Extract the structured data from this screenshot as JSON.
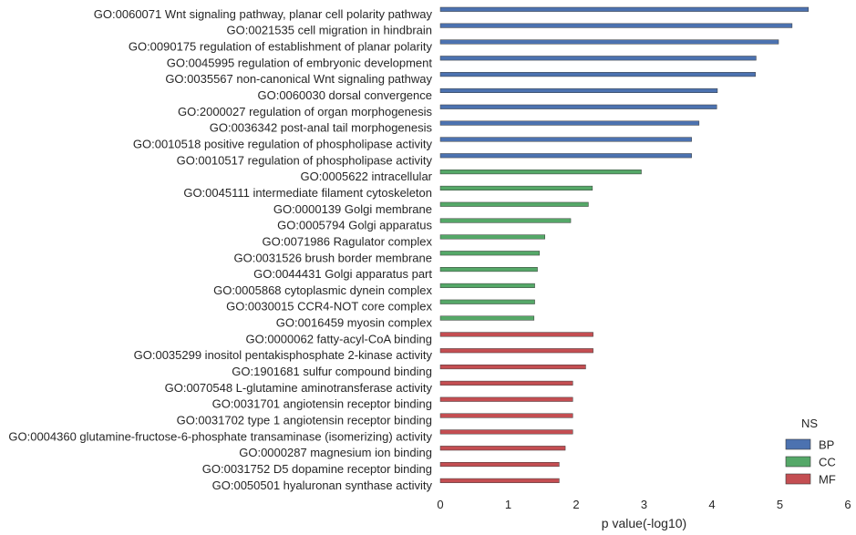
{
  "chart_data": {
    "type": "bar",
    "orientation": "horizontal",
    "xlabel": "p value(-log10)",
    "xlim": [
      0,
      6
    ],
    "xticks": [
      0,
      1,
      2,
      3,
      4,
      5,
      6
    ],
    "grid": false,
    "legend": {
      "title": "NS",
      "placement": "bottom-right",
      "entries": [
        {
          "label": "BP",
          "color": "#4c72b0"
        },
        {
          "label": "CC",
          "color": "#55a868"
        },
        {
          "label": "MF",
          "color": "#c44e52"
        }
      ]
    },
    "categories": [
      "GO:0060071 Wnt signaling pathway, planar cell polarity pathway",
      "GO:0021535 cell migration in hindbrain",
      "GO:0090175 regulation of establishment of planar polarity",
      "GO:0045995 regulation of embryonic development",
      "GO:0035567 non-canonical Wnt signaling pathway",
      "GO:0060030 dorsal convergence",
      "GO:2000027 regulation of organ morphogenesis",
      "GO:0036342 post-anal tail morphogenesis",
      "GO:0010518 positive regulation of phospholipase activity",
      "GO:0010517 regulation of phospholipase activity",
      "GO:0005622 intracellular",
      "GO:0045111 intermediate filament cytoskeleton",
      "GO:0000139 Golgi membrane",
      "GO:0005794 Golgi apparatus",
      "GO:0071986 Ragulator complex",
      "GO:0031526 brush border membrane",
      "GO:0044431 Golgi apparatus part",
      "GO:0005868 cytoplasmic dynein complex",
      "GO:0030015 CCR4-NOT core complex",
      "GO:0016459 myosin complex",
      "GO:0000062 fatty-acyl-CoA binding",
      "GO:0035299 inositol pentakisphosphate 2-kinase activity",
      "GO:1901681 sulfur compound binding",
      "GO:0070548 L-glutamine aminotransferase activity",
      "GO:0031701 angiotensin receptor binding",
      "GO:0031702 type 1 angiotensin receptor binding",
      "GO:0004360 glutamine-fructose-6-phosphate transaminase (isomerizing) activity",
      "GO:0000287 magnesium ion binding",
      "GO:0031752 D5 dopamine receptor binding",
      "GO:0050501 hyaluronan synthase activity"
    ],
    "values": [
      5.42,
      5.18,
      4.98,
      4.65,
      4.64,
      4.08,
      4.07,
      3.81,
      3.7,
      3.7,
      2.96,
      2.24,
      2.18,
      1.92,
      1.54,
      1.46,
      1.43,
      1.39,
      1.39,
      1.38,
      2.25,
      2.25,
      2.14,
      1.95,
      1.95,
      1.95,
      1.95,
      1.84,
      1.75,
      1.75
    ],
    "groups": [
      "BP",
      "BP",
      "BP",
      "BP",
      "BP",
      "BP",
      "BP",
      "BP",
      "BP",
      "BP",
      "CC",
      "CC",
      "CC",
      "CC",
      "CC",
      "CC",
      "CC",
      "CC",
      "CC",
      "CC",
      "MF",
      "MF",
      "MF",
      "MF",
      "MF",
      "MF",
      "MF",
      "MF",
      "MF",
      "MF"
    ]
  }
}
